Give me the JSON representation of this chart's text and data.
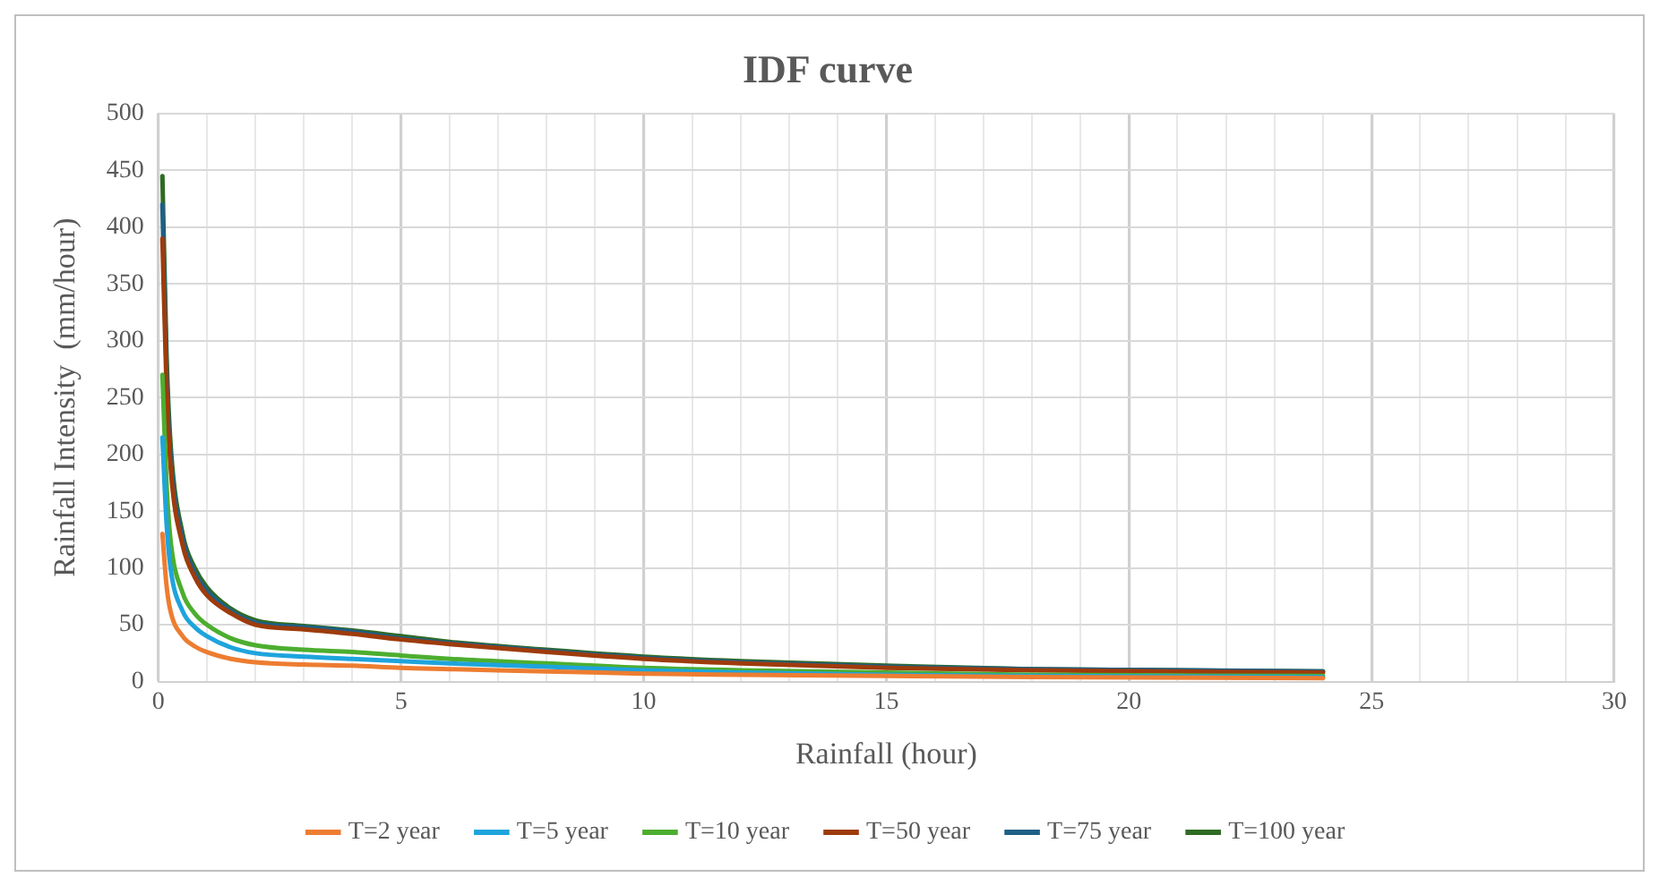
{
  "chart_data": {
    "type": "line",
    "title": "IDF curve",
    "xlabel": "Rainfall (hour)",
    "ylabel": "Rainfall Intensity  (mm/hour)",
    "x": [
      0.083,
      0.167,
      0.25,
      0.5,
      0.75,
      1,
      1.5,
      2,
      3,
      4,
      5,
      6,
      8,
      10,
      12,
      15,
      18,
      24
    ],
    "series": [
      {
        "name": "T=2 year",
        "color": "#ed7d31",
        "values": [
          130,
          85,
          62,
          40,
          31,
          26,
          20,
          17,
          15,
          14,
          12,
          11,
          9,
          7,
          6,
          5,
          4,
          3
        ]
      },
      {
        "name": "T=5 year",
        "color": "#1ea4dc",
        "values": [
          215,
          140,
          100,
          62,
          48,
          40,
          30,
          25,
          22,
          20,
          18,
          16,
          13,
          10,
          8,
          6,
          5,
          4
        ]
      },
      {
        "name": "T=10 year",
        "color": "#4cae2f",
        "values": [
          270,
          175,
          125,
          78,
          60,
          50,
          38,
          32,
          28,
          26,
          23,
          20,
          16,
          12,
          10,
          8,
          6,
          5
        ]
      },
      {
        "name": "T=50 year",
        "color": "#9e3b0c",
        "values": [
          390,
          260,
          190,
          120,
          92,
          76,
          60,
          50,
          46,
          42,
          37,
          33,
          26,
          20,
          16,
          12,
          10,
          8
        ]
      },
      {
        "name": "T=75 year",
        "color": "#1f5f85",
        "values": [
          420,
          275,
          200,
          126,
          96,
          80,
          62,
          52,
          48,
          44,
          38,
          34,
          27,
          21,
          17,
          13,
          11,
          9
        ]
      },
      {
        "name": "T=100 year",
        "color": "#2e6b23",
        "values": [
          445,
          290,
          210,
          130,
          100,
          83,
          64,
          54,
          49,
          45,
          40,
          35,
          28,
          22,
          18,
          14,
          11,
          9
        ]
      }
    ],
    "xlim": [
      0,
      30
    ],
    "xticks": [
      0,
      {
        "value": 1,
        "label": null
      },
      {
        "value": 2,
        "label": null
      },
      {
        "value": 3,
        "label": null
      },
      {
        "value": 4,
        "label": null
      },
      5,
      {
        "value": 6,
        "label": null
      },
      {
        "value": 7,
        "label": null
      },
      {
        "value": 8,
        "label": null
      },
      {
        "value": 9,
        "label": null
      },
      10,
      {
        "value": 11,
        "label": null
      },
      {
        "value": 12,
        "label": null
      },
      {
        "value": 13,
        "label": null
      },
      {
        "value": 14,
        "label": null
      },
      15,
      {
        "value": 16,
        "label": null
      },
      {
        "value": 17,
        "label": null
      },
      {
        "value": 18,
        "label": null
      },
      {
        "value": 19,
        "label": null
      },
      20,
      {
        "value": 21,
        "label": null
      },
      {
        "value": 22,
        "label": null
      },
      {
        "value": 23,
        "label": null
      },
      {
        "value": 24,
        "label": null
      },
      25,
      {
        "value": 26,
        "label": null
      },
      {
        "value": 27,
        "label": null
      },
      {
        "value": 28,
        "label": null
      },
      {
        "value": 29,
        "label": null
      },
      30
    ],
    "ylim": [
      0,
      500
    ],
    "yticks": [
      0,
      50,
      100,
      150,
      200,
      250,
      300,
      350,
      400,
      450,
      500
    ],
    "grid": true,
    "legend": "bottom",
    "marker": "none",
    "line_style": "solid"
  }
}
